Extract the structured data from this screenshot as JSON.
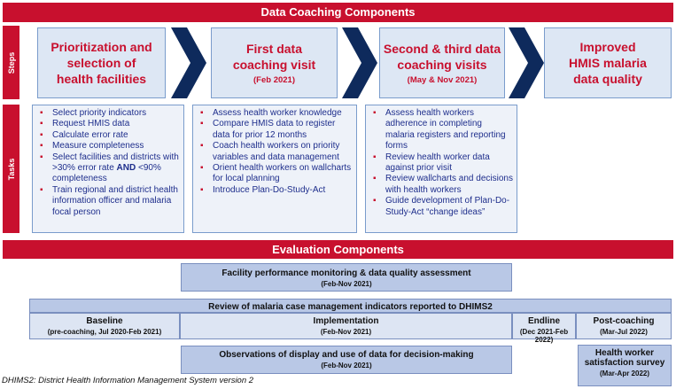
{
  "banner_top": "Data Coaching Components",
  "steps_label": "Steps",
  "tasks_label": "Tasks",
  "steps": [
    {
      "title_lines": [
        "Prioritization and",
        "selection of",
        "health facilities"
      ],
      "date": ""
    },
    {
      "title_lines": [
        "First data",
        "coaching visit"
      ],
      "date": "(Feb 2021)"
    },
    {
      "title_lines": [
        "Second & third data",
        "coaching visits"
      ],
      "date": "(May & Nov 2021)"
    },
    {
      "title_lines": [
        "Improved",
        "HMIS malaria",
        "data quality"
      ],
      "date": ""
    }
  ],
  "tasks": [
    {
      "items": [
        "Select priority indicators",
        "Request HMIS data",
        "Calculate error rate",
        "Measure completeness",
        "Select facilities and districts with >30% error rate AND <90% completeness",
        "Train regional and district health information officer and malaria focal person"
      ]
    },
    {
      "items": [
        "Assess health worker knowledge",
        "Compare HMIS data to register data for prior 12 months",
        "Coach health workers on priority variables and data management",
        "Orient health workers on wallcharts for local planning",
        "Introduce Plan-Do-Study-Act"
      ]
    },
    {
      "items": [
        "Assess health workers adherence in completing malaria registers and reporting forms",
        "Review health worker data against prior visit",
        "Review wallcharts and decisions with health workers",
        "Guide development of Plan-Do-Study-Act “change ideas”"
      ]
    }
  ],
  "banner_eval": "Evaluation Components",
  "eval": {
    "facility": {
      "title": "Facility performance monitoring & data quality assessment",
      "date": "(Feb-Nov 2021)"
    },
    "review": {
      "title": "Review of malaria case management indicators reported to DHIMS2"
    },
    "phases": [
      {
        "title": "Baseline",
        "date": "(pre-coaching, Jul 2020-Feb 2021)"
      },
      {
        "title": "Implementation",
        "date": "(Feb-Nov 2021)"
      },
      {
        "title": "Endline",
        "date": "(Dec 2021-Feb 2022)"
      },
      {
        "title": "Post-coaching",
        "date": "(Mar-Jul 2022)"
      }
    ],
    "observations": {
      "title": "Observations of display and use of data for decision-making",
      "date": "(Feb-Nov 2021)"
    },
    "survey": {
      "title_lines": [
        "Health worker",
        "satisfaction survey"
      ],
      "date": "(Mar-Apr 2022)"
    }
  },
  "footnote": "DHIMS2: District Health Information Management System version 2",
  "colors": {
    "accent_red": "#c8102e",
    "chevron_navy": "#0e2a5c",
    "box_blue": "#dde7f4",
    "eval_blue": "#b9c8e6",
    "task_text": "#1e2e8c"
  }
}
